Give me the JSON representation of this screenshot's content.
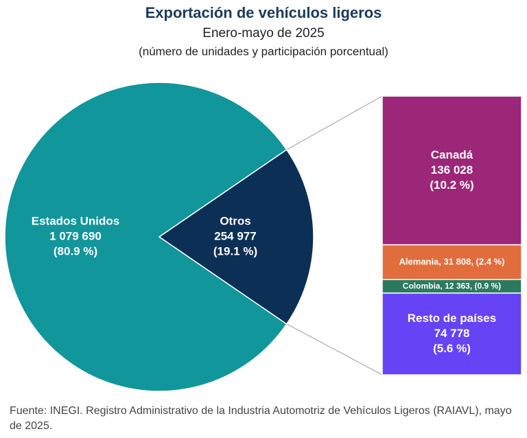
{
  "chart_data": {
    "type": "pie-of-bar",
    "title": "Exportación de vehículos ligeros",
    "subtitle": "Enero-mayo de 2025",
    "note": "(número de unidades y participación porcentual)",
    "pie": {
      "categories": [
        "Estados Unidos",
        "Otros"
      ],
      "values": [
        1079690,
        254977
      ],
      "value_labels": [
        "1 079 690",
        "254 977"
      ],
      "percents": [
        80.9,
        19.1
      ],
      "percent_labels": [
        "(80.9 %)",
        "(19.1 %)"
      ],
      "colors": [
        "#11969b",
        "#0c2f55"
      ]
    },
    "bar": {
      "segments": [
        {
          "name": "Canadá",
          "value": 136028,
          "value_label": "136 028",
          "percent": 10.2,
          "percent_label": "(10.2 %)",
          "color": "#9c2677"
        },
        {
          "label": "Alemania, 31 808, (2.4 %)",
          "value": 31808,
          "color": "#e26d3c"
        },
        {
          "label": "Colombia,  12 363, (0.9 %)",
          "value": 12363,
          "color": "#2b7a60"
        },
        {
          "name": "Resto de países",
          "value": 74778,
          "value_label": "74 778",
          "percent": 5.6,
          "percent_label": "(5.6 %)",
          "color": "#6643f5"
        }
      ]
    },
    "source": "Fuente: INEGI. Registro Administrativo de la Industria Automotriz de Vehículos Ligeros (RAIAVL), mayo de 2025."
  }
}
